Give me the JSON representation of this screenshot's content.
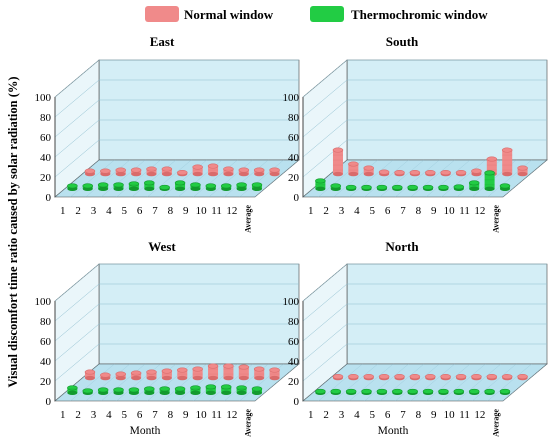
{
  "colors": {
    "normal": "#f08a8a",
    "normal_dark": "#d96b6b",
    "thermo": "#22cc44",
    "thermo_dark": "#139a2e",
    "pane": "#d4eef6",
    "floor": "#b9e1ef",
    "grid": "#8fbfd0"
  },
  "legend": {
    "normal_label": "Normal window",
    "thermo_label": "Thermochromic window"
  },
  "ylabel": "Visual discomfort time ratio caused by solar radiation (%)",
  "chart_data": [
    {
      "type": "bar",
      "title": "East",
      "xlabel": "",
      "categories": [
        "1",
        "2",
        "3",
        "4",
        "5",
        "6",
        "7",
        "8",
        "9",
        "10",
        "11",
        "12",
        "Average"
      ],
      "yticks": [
        "0",
        "20",
        "40",
        "60",
        "80",
        "100"
      ],
      "ylim": [
        0,
        100
      ],
      "series": [
        {
          "name": "Normal window",
          "values": [
            3,
            3,
            4,
            4,
            5,
            5,
            1,
            7,
            8,
            5,
            4,
            4,
            4
          ]
        },
        {
          "name": "Thermochromic window",
          "values": [
            3,
            3,
            4,
            4,
            5,
            6,
            1,
            6,
            4,
            3,
            3,
            4,
            4
          ]
        }
      ]
    },
    {
      "type": "bar",
      "title": "South",
      "xlabel": "",
      "categories": [
        "1",
        "2",
        "3",
        "4",
        "5",
        "6",
        "7",
        "8",
        "9",
        "10",
        "11",
        "12",
        "Average"
      ],
      "yticks": [
        "0",
        "20",
        "40",
        "60",
        "80",
        "100"
      ],
      "ylim": [
        0,
        100
      ],
      "series": [
        {
          "name": "Normal window",
          "values": [
            24,
            10,
            6,
            2,
            1,
            1,
            1,
            1,
            1,
            3,
            15,
            24,
            6
          ]
        },
        {
          "name": "Thermochromic window",
          "values": [
            8,
            3,
            1,
            1,
            1,
            1,
            1,
            1,
            1,
            2,
            6,
            16,
            3
          ]
        }
      ]
    },
    {
      "type": "bar",
      "title": "West",
      "xlabel": "Month",
      "categories": [
        "1",
        "2",
        "3",
        "4",
        "5",
        "6",
        "7",
        "8",
        "9",
        "10",
        "11",
        "12",
        "Average"
      ],
      "yticks": [
        "0",
        "20",
        "40",
        "60",
        "80",
        "100"
      ],
      "ylim": [
        0,
        100
      ],
      "series": [
        {
          "name": "Normal window",
          "values": [
            6,
            3,
            4,
            5,
            6,
            7,
            8,
            9,
            12,
            12,
            11,
            9,
            8
          ]
        },
        {
          "name": "Thermochromic window",
          "values": [
            5,
            2,
            3,
            3,
            3,
            4,
            4,
            4,
            5,
            6,
            6,
            5,
            4
          ]
        }
      ]
    },
    {
      "type": "bar",
      "title": "North",
      "xlabel": "Month",
      "categories": [
        "1",
        "2",
        "3",
        "4",
        "5",
        "6",
        "7",
        "8",
        "9",
        "10",
        "11",
        "12",
        "Average"
      ],
      "yticks": [
        "0",
        "20",
        "40",
        "60",
        "80",
        "100"
      ],
      "ylim": [
        0,
        100
      ],
      "series": [
        {
          "name": "Normal window",
          "values": [
            1,
            1,
            1,
            1,
            1,
            1,
            1,
            1,
            1,
            1,
            1,
            1,
            1
          ]
        },
        {
          "name": "Thermochromic window",
          "values": [
            1,
            1,
            1,
            1,
            1,
            1,
            1,
            1,
            1,
            1,
            1,
            1,
            1
          ]
        }
      ]
    }
  ]
}
